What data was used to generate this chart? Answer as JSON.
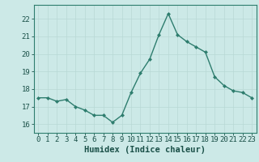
{
  "x": [
    0,
    1,
    2,
    3,
    4,
    5,
    6,
    7,
    8,
    9,
    10,
    11,
    12,
    13,
    14,
    15,
    16,
    17,
    18,
    19,
    20,
    21,
    22,
    23
  ],
  "y": [
    17.5,
    17.5,
    17.3,
    17.4,
    17.0,
    16.8,
    16.5,
    16.5,
    16.1,
    16.5,
    17.8,
    18.9,
    19.7,
    21.1,
    22.3,
    21.1,
    20.7,
    20.4,
    20.1,
    18.7,
    18.2,
    17.9,
    17.8,
    17.5
  ],
  "line_color": "#2e7d6e",
  "marker": "D",
  "marker_size": 2.0,
  "line_width": 1.0,
  "bg_color": "#cce9e7",
  "grid_color": "#b8d8d5",
  "xlabel": "Humidex (Indice chaleur)",
  "xlim": [
    -0.5,
    23.5
  ],
  "ylim": [
    15.5,
    22.8
  ],
  "yticks": [
    16,
    17,
    18,
    19,
    20,
    21,
    22
  ],
  "xticks": [
    0,
    1,
    2,
    3,
    4,
    5,
    6,
    7,
    8,
    9,
    10,
    11,
    12,
    13,
    14,
    15,
    16,
    17,
    18,
    19,
    20,
    21,
    22,
    23
  ],
  "tick_color": "#1a5048",
  "font_color": "#1a5048",
  "xlabel_fontsize": 7.5,
  "tick_fontsize": 6.5,
  "spine_color": "#2e7d6e",
  "grid_major_color": "#c8d8d6",
  "grid_minor_color": "#d8e8e6"
}
